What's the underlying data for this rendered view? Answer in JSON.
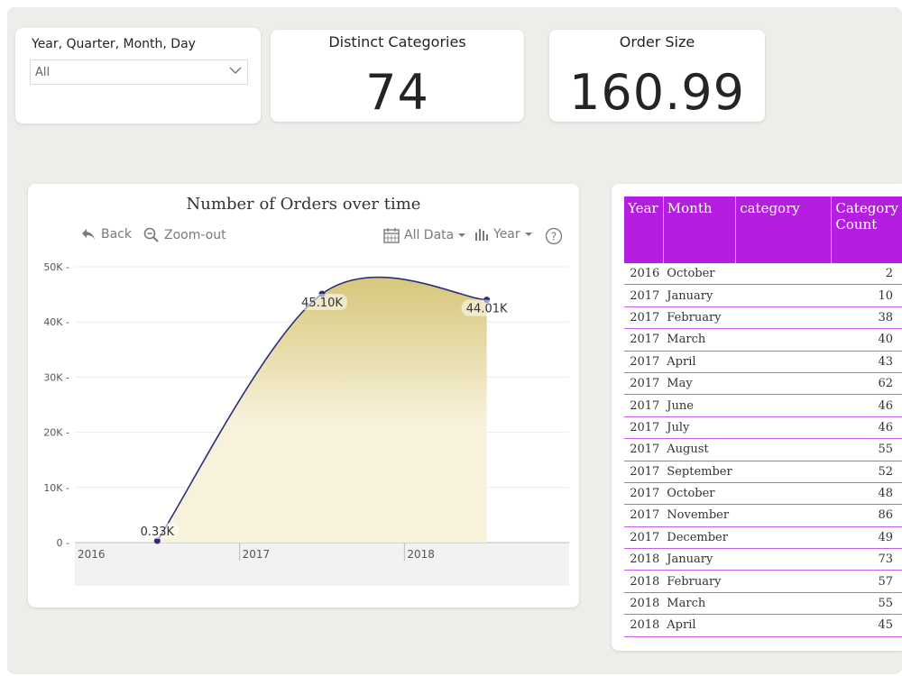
{
  "slicer": {
    "title": "Year, Quarter, Month, Day",
    "value": "All"
  },
  "kpis": [
    {
      "label": "Distinct Categories",
      "value": "74"
    },
    {
      "label": "Order Size",
      "value": "160.99"
    }
  ],
  "chart": {
    "title": "Number of Orders over time",
    "toolbar": {
      "back": "Back",
      "zoom_out": "Zoom-out",
      "all_data": "All Data",
      "year": "Year",
      "help": "?"
    }
  },
  "chart_data": {
    "type": "area",
    "title": "Number of Orders over time",
    "x_tick_labels": [
      "2016",
      "2017",
      "2018"
    ],
    "y_tick_labels": [
      "0",
      "10K",
      "20K",
      "30K",
      "40K",
      "50K"
    ],
    "ylim": [
      0,
      50000
    ],
    "points": [
      {
        "x": 2016.5,
        "y": 330,
        "label": "0.33K"
      },
      {
        "x": 2017.5,
        "y": 45100,
        "label": "45.10K"
      },
      {
        "x": 2018.5,
        "y": 44010,
        "label": "44.01K"
      }
    ],
    "colors": {
      "line": "#2a2f7a",
      "fill_top": "#d6c77a",
      "fill_bottom": "#f8f2dc"
    },
    "grid": true
  },
  "table": {
    "headers": [
      "Year",
      "Month",
      "category",
      "Category Count"
    ],
    "header_color": "#b51de0",
    "rows": [
      [
        "2016",
        "October",
        "",
        "2"
      ],
      [
        "2017",
        "January",
        "",
        "10"
      ],
      [
        "2017",
        "February",
        "",
        "38"
      ],
      [
        "2017",
        "March",
        "",
        "40"
      ],
      [
        "2017",
        "April",
        "",
        "43"
      ],
      [
        "2017",
        "May",
        "",
        "62"
      ],
      [
        "2017",
        "June",
        "",
        "46"
      ],
      [
        "2017",
        "July",
        "",
        "46"
      ],
      [
        "2017",
        "August",
        "",
        "55"
      ],
      [
        "2017",
        "September",
        "",
        "52"
      ],
      [
        "2017",
        "October",
        "",
        "48"
      ],
      [
        "2017",
        "November",
        "",
        "86"
      ],
      [
        "2017",
        "December",
        "",
        "49"
      ],
      [
        "2018",
        "January",
        "",
        "73"
      ],
      [
        "2018",
        "February",
        "",
        "57"
      ],
      [
        "2018",
        "March",
        "",
        "55"
      ],
      [
        "2018",
        "April",
        "",
        "45"
      ]
    ]
  }
}
